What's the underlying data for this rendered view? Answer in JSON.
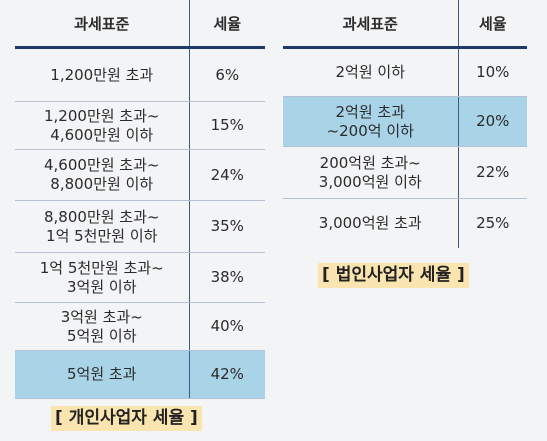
{
  "individual": {
    "headers": [
      "과세표준",
      "세율"
    ],
    "rows": [
      {
        "bracket": "1,200만원 초과",
        "rate": "6%"
      },
      {
        "bracket": "1,200만원 초과~\n4,600만원 이하",
        "rate": "15%"
      },
      {
        "bracket": "4,600만원 초과~\n8,800만원 이하",
        "rate": "24%"
      },
      {
        "bracket": "8,800만원 초과~\n1억 5천만원 이하",
        "rate": "35%"
      },
      {
        "bracket": "1억 5천만원 초과~\n3억원 이하",
        "rate": "38%"
      },
      {
        "bracket": "3억원 초과~\n5억원 이하",
        "rate": "40%"
      },
      {
        "bracket": "5억원 초과",
        "rate": "42%"
      }
    ],
    "caption": "[ 개인사업자 세율 ]"
  },
  "corporate": {
    "headers": [
      "과세표준",
      "세율"
    ],
    "rows": [
      {
        "bracket": "2억원 이하",
        "rate": "10%"
      },
      {
        "bracket": "2억원 초과\n~200억 이하",
        "rate": "20%"
      },
      {
        "bracket": "200억원 초과~\n3,000억원 이하",
        "rate": "22%"
      },
      {
        "bracket": "3,000억원 초과",
        "rate": "25%"
      }
    ],
    "caption": "[ 법인사업자 세율 ]"
  },
  "colors": {
    "header_rule": "#1f3a68",
    "highlight_row": "#a9d3e6",
    "caption_bg": "#fae4b0",
    "background": "#f3f4f6"
  }
}
